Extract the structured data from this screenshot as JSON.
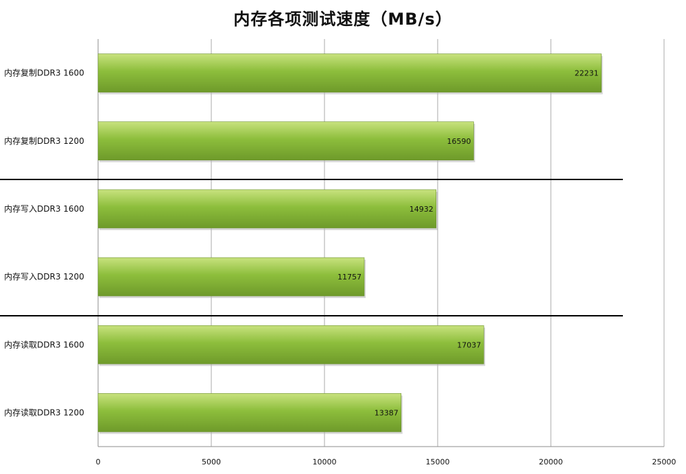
{
  "chart_data": {
    "type": "bar",
    "orientation": "horizontal",
    "title": "内存各项测试速度（MB/s）",
    "categories": [
      "内存复制DDR3  1600",
      "内存复制DDR3  1200",
      "内存写入DDR3  1600",
      "内存写入DDR3  1200",
      "内存读取DDR3  1600",
      "内存读取DDR3  1200"
    ],
    "values": [
      22231,
      16590,
      14932,
      11757,
      17037,
      13387
    ],
    "xlabel": "",
    "ylabel": "",
    "xlim": [
      0,
      25000
    ],
    "xticks": [
      "0",
      "5000",
      "10000",
      "15000",
      "20000",
      "25000"
    ],
    "grid": true,
    "legend": "none",
    "bar_color": "#8DBE3C",
    "bar_color_light": "#C8E27E",
    "bar_color_dark": "#6E9A2A"
  }
}
